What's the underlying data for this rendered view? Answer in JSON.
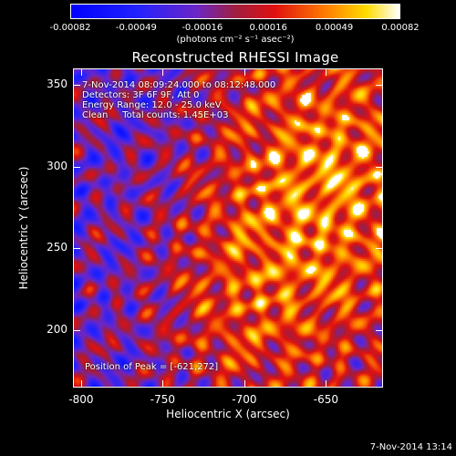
{
  "colorbar": {
    "tick_labels": [
      "-0.00082",
      "-0.00049",
      "-0.00016",
      "0.00016",
      "0.00049",
      "0.00082"
    ],
    "units_label": "(photons cm⁻² s⁻¹ asec⁻²)",
    "range": [
      -0.00082,
      0.00082
    ]
  },
  "plot": {
    "title": "Reconstructed RHESSI Image",
    "info_lines": [
      "7-Nov-2014 08:09:24.000 to 08:12:48.000",
      "Detectors: 3F 6F 9F, Att 0",
      "Energy Range: 12.0 - 25.0 keV",
      "Clean     Total counts: 1.45E+03"
    ],
    "peak_label": "Position of Peak = [-621,272]",
    "x_ticks": [
      "-800",
      "-750",
      "-700",
      "-650"
    ],
    "y_ticks": [
      "350",
      "300",
      "250",
      "200"
    ],
    "xlabel": "Heliocentric X (arcsec)",
    "ylabel": "Heliocentric Y (arcsec)"
  },
  "chart_data": {
    "type": "heatmap",
    "title": "Reconstructed RHESSI Image",
    "xlabel": "Heliocentric X (arcsec)",
    "ylabel": "Heliocentric Y (arcsec)",
    "xlim": [
      -805,
      -615
    ],
    "ylim": [
      165,
      360
    ],
    "x_ticks": [
      -800,
      -750,
      -700,
      -650
    ],
    "y_ticks": [
      350,
      300,
      250,
      200
    ],
    "color_range": [
      -0.00082,
      0.00082
    ],
    "peak_position": [
      -621,
      272
    ]
  },
  "footer": {
    "timestamp": "7-Nov-2014 13:14"
  }
}
